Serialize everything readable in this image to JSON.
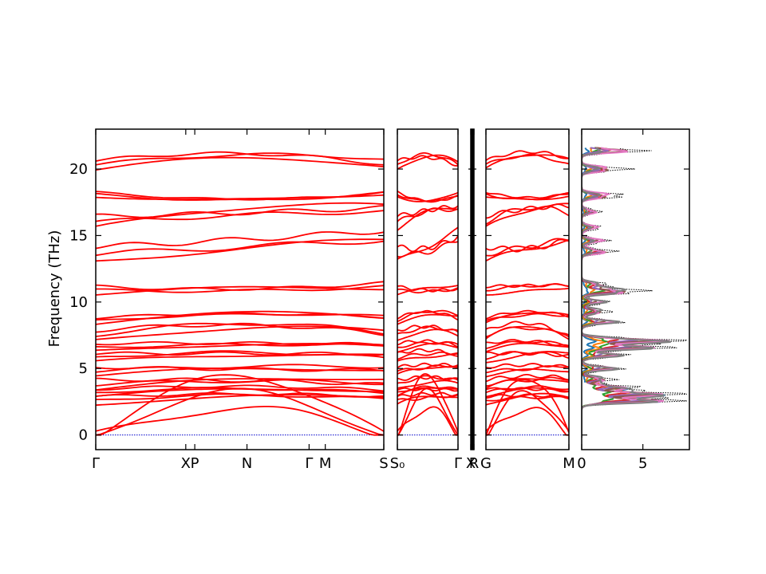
{
  "chart_data": {
    "type": "line",
    "title": "",
    "ylabel": "Frequency (THz)",
    "ylim": [
      -1.1,
      23.0
    ],
    "yticks": [
      0,
      5,
      10,
      15,
      20
    ],
    "zero_line_color": "#0000cc",
    "band_color": "#ff0000",
    "panels": [
      {
        "id": "p1",
        "xticks": [
          {
            "label": "Γ",
            "at": 0.0
          },
          {
            "label": "X",
            "at": 1.0
          },
          {
            "label": "P",
            "at": 1.1
          },
          {
            "label": "N",
            "at": 1.68
          },
          {
            "label": "Γ",
            "at": 2.37
          },
          {
            "label": "M",
            "at": 2.55
          },
          {
            "label": "S",
            "at": 3.2
          }
        ],
        "xlim": [
          0,
          3.2
        ]
      },
      {
        "id": "p2",
        "xticks": [
          {
            "label": "S₀",
            "at": 0.0
          },
          {
            "label": "Γ",
            "at": 1.0
          }
        ],
        "xlim": [
          0,
          1.0
        ]
      },
      {
        "id": "p3",
        "xticks": [
          {
            "label": "X",
            "at": 0.0
          },
          {
            "label": "R",
            "at": 1.0
          }
        ],
        "xlim": [
          0,
          1.0
        ]
      },
      {
        "id": "p4",
        "xticks": [
          {
            "label": "G",
            "at": 0.0
          },
          {
            "label": "M",
            "at": 1.0
          }
        ],
        "xlim": [
          0,
          1.0
        ]
      },
      {
        "id": "dos",
        "type": "density",
        "xticks": [
          {
            "label": "0",
            "at": 0
          },
          {
            "label": "5",
            "at": 5
          }
        ],
        "xlim": [
          0,
          8.8
        ],
        "series_colors": [
          "#1f77b4",
          "#ff7f0e",
          "#2ca02c",
          "#d62728",
          "#9467bd",
          "#8c564b",
          "#e377c2",
          "#7f7f7f"
        ],
        "total_color": "#000000"
      }
    ],
    "band_groups": [
      {
        "base": [
          0,
          0,
          0
        ],
        "spread": 2.5
      },
      {
        "base": [
          2.6,
          3.1,
          2.8
        ],
        "spread": 0.8
      },
      {
        "base": [
          3.2,
          3.6,
          3.3
        ],
        "spread": 0.7
      },
      {
        "base": [
          3.8,
          4.4,
          4.0
        ],
        "spread": 1.0
      },
      {
        "base": [
          4.8,
          5.3,
          5.0
        ],
        "spread": 0.9
      },
      {
        "base": [
          5.8,
          6.3,
          6.0
        ],
        "spread": 0.9
      },
      {
        "base": [
          6.6,
          7.1,
          6.8
        ],
        "spread": 0.8
      },
      {
        "base": [
          7.5,
          8.8,
          7.6
        ],
        "spread": 1.0
      },
      {
        "base": [
          8.6,
          9.5,
          8.9
        ],
        "spread": 0.6
      },
      {
        "base": [
          10.9,
          11.0,
          11.2
        ],
        "spread": 0.8
      },
      {
        "base": [
          13.6,
          14.0,
          15.0
        ],
        "spread": 1.6
      },
      {
        "base": [
          16.0,
          17.3,
          17.0
        ],
        "spread": 1.3
      },
      {
        "base": [
          18.1,
          17.3,
          18.1
        ],
        "spread": 0.5
      },
      {
        "base": [
          20.3,
          21.5,
          20.5
        ],
        "spread": 0.9
      }
    ]
  }
}
